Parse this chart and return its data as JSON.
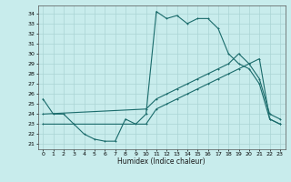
{
  "xlabel": "Humidex (Indice chaleur)",
  "bg_color": "#c8ecec",
  "grid_color": "#aad4d4",
  "line_color": "#1a6b6b",
  "ylim": [
    20.5,
    34.8
  ],
  "xlim": [
    -0.5,
    23.5
  ],
  "yticks": [
    21,
    22,
    23,
    24,
    25,
    26,
    27,
    28,
    29,
    30,
    31,
    32,
    33,
    34
  ],
  "xticks": [
    0,
    1,
    2,
    3,
    4,
    5,
    6,
    7,
    8,
    9,
    10,
    11,
    12,
    13,
    14,
    15,
    16,
    17,
    18,
    19,
    20,
    21,
    22,
    23
  ],
  "line1_x": [
    0,
    1,
    2,
    3,
    4,
    5,
    6,
    7,
    8,
    9,
    10,
    11,
    12,
    13,
    14,
    15,
    16,
    17,
    18,
    19,
    20,
    21,
    22,
    23
  ],
  "line1_y": [
    25.5,
    24.0,
    24.0,
    23.0,
    22.0,
    21.5,
    21.3,
    21.3,
    23.5,
    23.0,
    24.0,
    34.2,
    33.5,
    33.8,
    33.0,
    33.5,
    33.5,
    32.5,
    30.0,
    29.0,
    28.5,
    27.0,
    23.5,
    23.0
  ],
  "line2_x": [
    0,
    10,
    11,
    12,
    13,
    14,
    15,
    16,
    17,
    18,
    19,
    20,
    21,
    22,
    23
  ],
  "line2_y": [
    23.0,
    23.0,
    24.5,
    25.0,
    25.5,
    26.0,
    26.5,
    27.0,
    27.5,
    28.0,
    28.5,
    29.0,
    29.5,
    23.5,
    23.0
  ],
  "line3_x": [
    0,
    10,
    11,
    12,
    13,
    14,
    15,
    16,
    17,
    18,
    19,
    20,
    21,
    22,
    23
  ],
  "line3_y": [
    24.0,
    24.5,
    25.5,
    26.0,
    26.5,
    27.0,
    27.5,
    28.0,
    28.5,
    29.0,
    30.0,
    29.0,
    27.5,
    24.0,
    23.5
  ]
}
